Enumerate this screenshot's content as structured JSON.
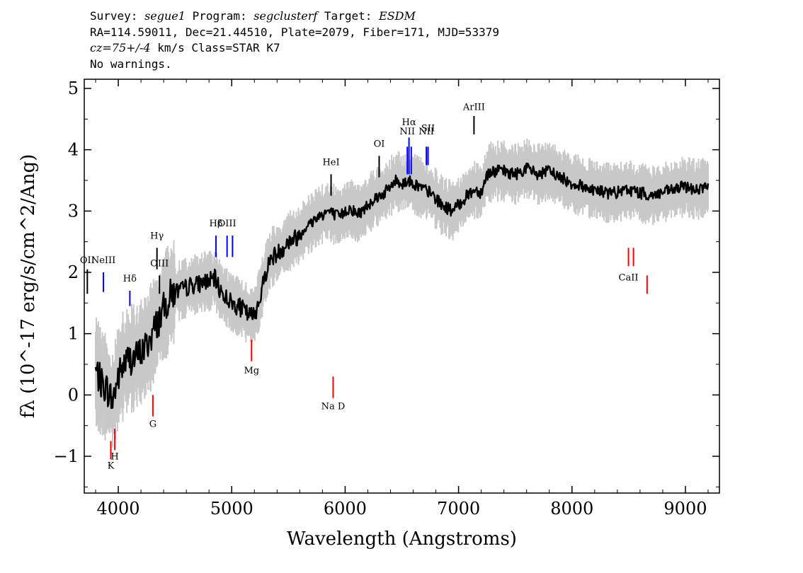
{
  "header": {
    "survey_label": "Survey:",
    "survey": "segue1",
    "program_label": "Program:",
    "program": "segclusterf",
    "target_label": "Target:",
    "target": "ESDM",
    "line2": "RA=114.59011, Dec=21.44510, Plate=2079, Fiber=171, MJD=53379",
    "cz_value": "cz=75+/-4",
    "cz_units": "km/s",
    "class_text": "Class=STAR K7",
    "line4": "No warnings."
  },
  "chart_data": {
    "type": "line",
    "title": "",
    "xlabel": "Wavelength (Angstroms)",
    "ylabel": "fλ (10^-17 erg/s/cm^2/Ang)",
    "xlim": [
      3700,
      9300
    ],
    "ylim": [
      -1.6,
      5.15
    ],
    "xticks": [
      4000,
      5000,
      6000,
      7000,
      8000,
      9000
    ],
    "yticks": [
      -1,
      0,
      1,
      2,
      3,
      4,
      5
    ],
    "grid": false,
    "series": [
      {
        "color": "#000000",
        "x": [
          3800,
          3850,
          3900,
          3950,
          4000,
          4050,
          4100,
          4150,
          4200,
          4250,
          4300,
          4350,
          4400,
          4450,
          4500,
          4550,
          4600,
          4650,
          4700,
          4750,
          4800,
          4850,
          4900,
          4950,
          5000,
          5050,
          5100,
          5150,
          5200,
          5250,
          5300,
          5350,
          5400,
          5450,
          5500,
          5550,
          5600,
          5650,
          5700,
          5750,
          5800,
          5850,
          5900,
          5950,
          6000,
          6050,
          6100,
          6150,
          6200,
          6250,
          6300,
          6350,
          6400,
          6450,
          6500,
          6550,
          6600,
          6650,
          6700,
          6750,
          6800,
          6850,
          6900,
          6950,
          7000,
          7050,
          7100,
          7150,
          7200,
          7250,
          7300,
          7400,
          7500,
          7600,
          7700,
          7800,
          7900,
          8000,
          8100,
          8200,
          8300,
          8400,
          8500,
          8600,
          8700,
          8800,
          8900,
          9000,
          9100,
          9200
        ],
        "y": [
          0.4,
          0.2,
          0.1,
          -0.1,
          0.3,
          0.5,
          0.6,
          0.6,
          0.7,
          0.8,
          1.0,
          1.2,
          1.4,
          1.6,
          1.7,
          1.7,
          1.75,
          1.8,
          1.8,
          1.85,
          1.85,
          1.9,
          1.7,
          1.6,
          1.5,
          1.45,
          1.4,
          1.3,
          1.3,
          1.6,
          2.0,
          2.25,
          2.3,
          2.4,
          2.5,
          2.55,
          2.6,
          2.75,
          2.8,
          2.9,
          2.95,
          3.0,
          2.95,
          2.9,
          3.0,
          3.05,
          2.95,
          3.0,
          3.1,
          3.2,
          3.25,
          3.3,
          3.4,
          3.5,
          3.45,
          3.5,
          3.45,
          3.4,
          3.35,
          3.3,
          3.2,
          3.1,
          3.05,
          3.0,
          3.1,
          3.2,
          3.3,
          3.35,
          3.3,
          3.6,
          3.65,
          3.65,
          3.6,
          3.7,
          3.6,
          3.65,
          3.55,
          3.45,
          3.4,
          3.35,
          3.3,
          3.3,
          3.35,
          3.3,
          3.25,
          3.3,
          3.35,
          3.4,
          3.35,
          3.4
        ]
      }
    ],
    "line_markers": [
      {
        "label": "OII",
        "x": 3727,
        "color": "#000000",
        "y_top": 2.05,
        "y_bot": 1.65,
        "label_y": 2.15
      },
      {
        "label": "NeIII",
        "x": 3869,
        "color": "#0000ff",
        "y_top": 2.0,
        "y_bot": 1.68,
        "label_y": 2.15
      },
      {
        "label": "Hδ",
        "x": 4102,
        "color": "#0000ff",
        "y_top": 1.7,
        "y_bot": 1.45,
        "label_y": 1.85
      },
      {
        "label": "Hγ",
        "x": 4341,
        "color": "#000000",
        "y_top": 2.4,
        "y_bot": 2.05,
        "label_y": 2.55
      },
      {
        "label": "OIII",
        "x": 4363,
        "color": "#000000",
        "y_top": 1.95,
        "y_bot": 1.65,
        "label_y": 2.1
      },
      {
        "label": "Hβ",
        "x": 4861,
        "color": "#0000ff",
        "y_top": 2.6,
        "y_bot": 2.25,
        "label_y": 2.75
      },
      {
        "label": "OIII",
        "x": 4959,
        "color": "#0000ff",
        "y_top": 2.6,
        "y_bot": 2.25,
        "label_y": 2.75
      },
      {
        "label": "",
        "x": 5007,
        "color": "#0000ff",
        "y_top": 2.6,
        "y_bot": 2.25
      },
      {
        "label": "HeI",
        "x": 5876,
        "color": "#000000",
        "y_top": 3.6,
        "y_bot": 3.25,
        "label_y": 3.75
      },
      {
        "label": "OI",
        "x": 6300,
        "color": "#000000",
        "y_top": 3.9,
        "y_bot": 3.55,
        "label_y": 4.05
      },
      {
        "label": "NII",
        "x": 6548,
        "color": "#0000ff",
        "y_top": 4.05,
        "y_bot": 3.6,
        "label_y": 4.25
      },
      {
        "label": "Hα",
        "x": 6563,
        "color": "#0000ff",
        "y_top": 4.2,
        "y_bot": 3.6,
        "label_y": 4.4
      },
      {
        "label": "",
        "x": 6583,
        "color": "#0000ff",
        "y_top": 4.05,
        "y_bot": 3.6
      },
      {
        "label": "NII",
        "x": 6716,
        "color": "#0000ff",
        "y_top": 4.05,
        "y_bot": 3.75,
        "label_y": 4.25
      },
      {
        "label": "SII",
        "x": 6731,
        "color": "#0000ff",
        "y_top": 4.05,
        "y_bot": 3.75,
        "label_y": 4.3
      },
      {
        "label": "ArIII",
        "x": 7136,
        "color": "#000000",
        "y_top": 4.55,
        "y_bot": 4.25,
        "label_y": 4.65
      },
      {
        "label": "K",
        "x": 3934,
        "color": "#ff0000",
        "y_top": -0.75,
        "y_bot": -1.05,
        "label_y": -1.2
      },
      {
        "label": "H",
        "x": 3969,
        "color": "#ff0000",
        "y_top": -0.55,
        "y_bot": -0.9,
        "label_y": -1.05
      },
      {
        "label": "G",
        "x": 4305,
        "color": "#ff0000",
        "y_top": 0.0,
        "y_bot": -0.35,
        "label_y": -0.52
      },
      {
        "label": "Mg",
        "x": 5175,
        "color": "#ff0000",
        "y_top": 0.9,
        "y_bot": 0.55,
        "label_y": 0.35
      },
      {
        "label": "Na D",
        "x": 5894,
        "color": "#ff0000",
        "y_top": 0.3,
        "y_bot": -0.05,
        "label_y": -0.23
      },
      {
        "label": "CaII",
        "x": 8498,
        "color": "#ff0000",
        "y_top": 2.4,
        "y_bot": 2.1,
        "label_y": 1.87
      },
      {
        "label": "",
        "x": 8542,
        "color": "#ff0000",
        "y_top": 2.4,
        "y_bot": 2.1
      },
      {
        "label": "",
        "x": 8662,
        "color": "#ff0000",
        "y_top": 1.95,
        "y_bot": 1.65
      }
    ]
  }
}
